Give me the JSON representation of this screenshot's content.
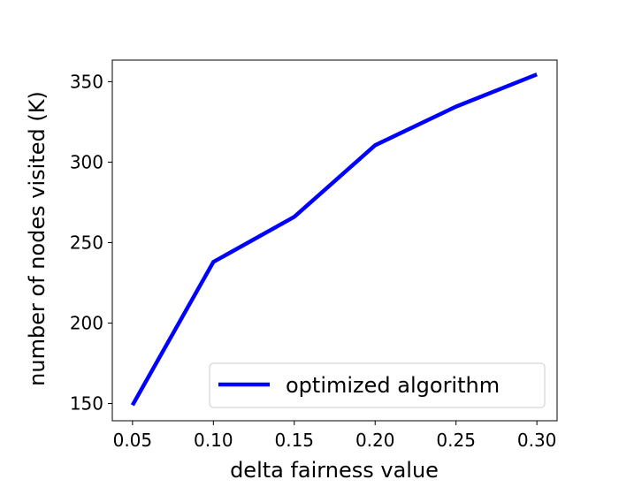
{
  "chart_data": {
    "type": "line",
    "title": "",
    "xlabel": "delta fairness value",
    "ylabel": "number of nodes visited (K)",
    "x": [
      0.05,
      0.1,
      0.15,
      0.2,
      0.25,
      0.3
    ],
    "x_tick_labels": [
      "0.05",
      "0.10",
      "0.15",
      "0.20",
      "0.25",
      "0.30"
    ],
    "y_ticks": [
      150,
      200,
      250,
      300,
      350
    ],
    "y_tick_labels": [
      "150",
      "200",
      "250",
      "300",
      "350"
    ],
    "xlim": [
      0.0375,
      0.3125
    ],
    "ylim": [
      139.3,
      363.4
    ],
    "grid": false,
    "legend_position": "lower-right",
    "series": [
      {
        "name": "optimized algorithm",
        "color": "#0000ff",
        "values": [
          149,
          238,
          266,
          310.5,
          334.5,
          354.5
        ]
      }
    ]
  }
}
